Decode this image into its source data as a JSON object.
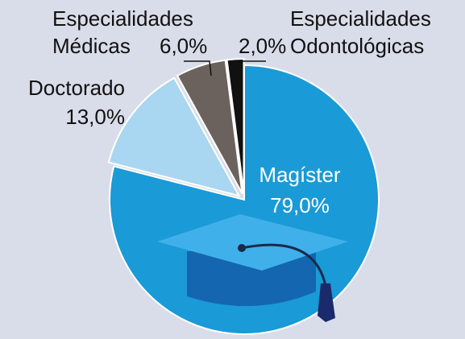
{
  "chart_data": {
    "type": "pie",
    "categories": [
      "Magíster",
      "Doctorado",
      "Especialidades Médicas",
      "Especialidades Odontológicas"
    ],
    "values": [
      79,
      13,
      6,
      2
    ],
    "value_labels": [
      "79,0%",
      "13,0%",
      "6,0%",
      "2,0%"
    ],
    "colors": [
      "#1a9ad6",
      "#a9d6f0",
      "#6b625e",
      "#111111"
    ]
  }
}
